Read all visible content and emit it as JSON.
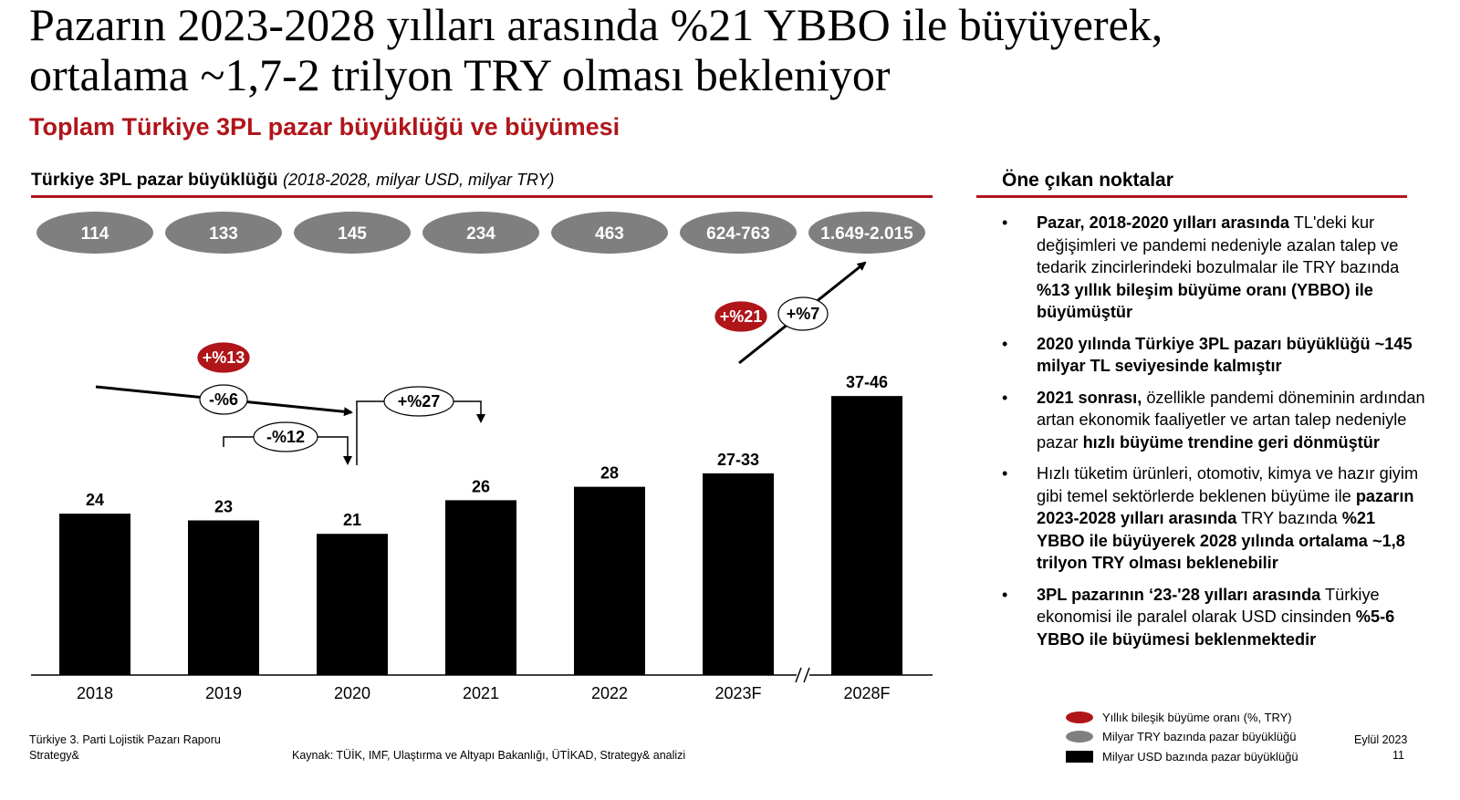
{
  "slide": {
    "title_line1": "Pazarın 2023-2028 yılları arasında %21 YBBO ile büyüyerek,",
    "title_line2": "ortalama ~1,7-2 trilyon TRY olması bekleniyor",
    "subtitle": "Toplam Türkiye 3PL pazar büyüklüğü ve büyümesi",
    "chart_heading_bold": "Türkiye 3PL pazar büyüklüğü",
    "chart_heading_note": "(2018-2028, milyar USD, milyar TRY)",
    "side_heading": "Öne çıkan noktalar"
  },
  "colors": {
    "accent_red": "#b0151a",
    "bubble_grey": "#7f7f7f",
    "bar": "#000000"
  },
  "chart_data": {
    "type": "bar",
    "categories": [
      "2018",
      "2019",
      "2020",
      "2021",
      "2022",
      "2023F",
      "2028F"
    ],
    "usd_values": [
      24,
      23,
      21,
      26,
      28,
      30,
      41.5
    ],
    "usd_labels": [
      "24",
      "23",
      "21",
      "26",
      "28",
      "27-33",
      "37-46"
    ],
    "try_labels": [
      "114",
      "133",
      "145",
      "234",
      "463",
      "624-763",
      "1.649-2.015"
    ],
    "cagr_annotations": [
      {
        "label": "+%13",
        "style": "red"
      },
      {
        "label": "-%6",
        "style": "white"
      },
      {
        "label": "-%12",
        "style": "white"
      },
      {
        "label": "+%27",
        "style": "white"
      },
      {
        "label": "+%21",
        "style": "red"
      },
      {
        "label": "+%7",
        "style": "white"
      }
    ],
    "axis_break_before": "2028F"
  },
  "bullets": [
    [
      {
        "t": "Pazar, 2018-2020 yılları arasında",
        "b": true
      },
      {
        "t": " TL'deki kur değişimleri ve pandemi nedeniyle azalan talep ve tedarik zincirlerindeki bozulmalar ile TRY bazında ",
        "b": false
      },
      {
        "t": "%13 yıllık bileşim büyüme oranı (YBBO) ile büyümüştür",
        "b": true
      }
    ],
    [
      {
        "t": "2020 yılında Türkiye 3PL pazarı büyüklüğü ~145 milyar TL seviyesinde kalmıştır",
        "b": true
      }
    ],
    [
      {
        "t": "2021 sonrası,",
        "b": true
      },
      {
        "t": " özellikle pandemi döneminin ardından artan ekonomik faaliyetler ve artan talep nedeniyle pazar ",
        "b": false
      },
      {
        "t": "hızlı büyüme trendine geri dönmüştür",
        "b": true
      }
    ],
    [
      {
        "t": "Hızlı tüketim ürünleri, otomotiv, kimya ve hazır giyim gibi temel sektörlerde beklenen büyüme ile ",
        "b": false
      },
      {
        "t": "pazarın 2023-2028 yılları arasında",
        "b": true
      },
      {
        "t": " TRY bazında ",
        "b": false
      },
      {
        "t": "%21 YBBO ile büyüyerek 2028 yılında ortalama ~1,8 trilyon TRY olması beklenebilir",
        "b": true
      }
    ],
    [
      {
        "t": "3PL pazarının ‘23-'28 yılları arasında",
        "b": true
      },
      {
        "t": " Türkiye ekonomisi ile paralel olarak USD cinsinden ",
        "b": false
      },
      {
        "t": "%5-6 YBBO ile büyümesi beklenmektedir",
        "b": true
      }
    ]
  ],
  "legend": {
    "cagr": "Yıllık bileşik büyüme oranı (%, TRY)",
    "try": "Milyar TRY bazında pazar büyüklüğü",
    "usd": "Milyar USD bazında pazar büyüklüğü"
  },
  "footer": {
    "report_line1": "Türkiye 3. Parti Lojistik Pazarı Raporu",
    "report_line2": "Strategy&",
    "source": "Kaynak: TÜİK, IMF, Ulaştırma ve Altyapı Bakanlığı, ÜTİKAD, Strategy& analizi",
    "date": "Eylül 2023",
    "page": "11"
  }
}
